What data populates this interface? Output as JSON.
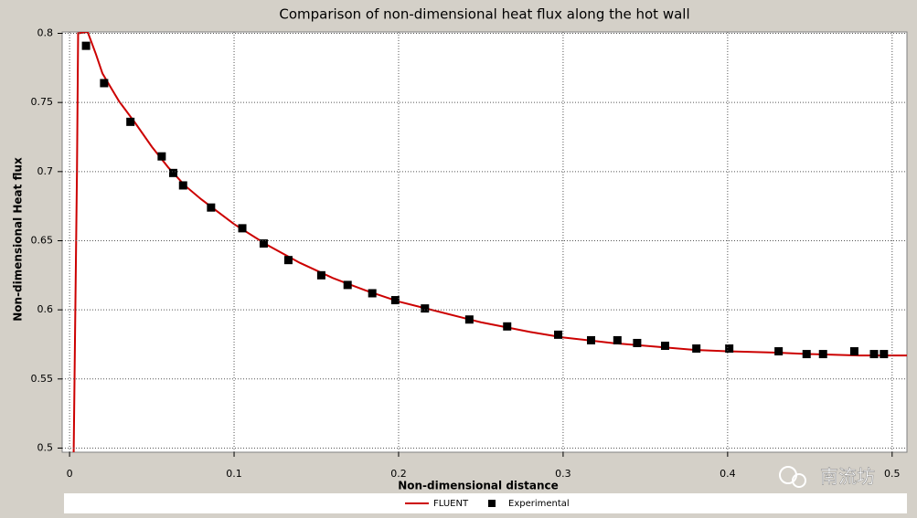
{
  "chart_data": {
    "type": "line",
    "title": "Comparison of non-dimensional heat flux along the hot wall",
    "x_label": "Non-dimensional distance",
    "y_label": "Non-dimensional Heat flux",
    "xlim": [
      -0.0045,
      0.509
    ],
    "ylim": [
      0.497,
      0.801
    ],
    "xticks": [
      0,
      0.1,
      0.2,
      0.3,
      0.4,
      0.5
    ],
    "yticks": [
      0.5,
      0.55,
      0.6,
      0.65,
      0.7,
      0.75,
      0.8
    ],
    "grid": true,
    "legend": "bottom",
    "watermark": "南流坊",
    "series": [
      {
        "name": "FLUENT",
        "type": "line",
        "color": "#cc0000",
        "x": [
          0.0025,
          0.0035,
          0.0045,
          0.0052,
          0.011,
          0.016,
          0.02,
          0.03,
          0.04,
          0.05,
          0.06,
          0.07,
          0.08,
          0.09,
          0.1,
          0.12,
          0.14,
          0.16,
          0.18,
          0.2,
          0.22,
          0.25,
          0.28,
          0.3,
          0.33,
          0.35,
          0.38,
          0.4,
          0.43,
          0.45,
          0.48,
          0.509
        ],
        "values": [
          0.497,
          0.6,
          0.7,
          0.8,
          0.801,
          0.785,
          0.771,
          0.751,
          0.735,
          0.718,
          0.703,
          0.69,
          0.68,
          0.671,
          0.662,
          0.647,
          0.634,
          0.623,
          0.614,
          0.606,
          0.6,
          0.591,
          0.584,
          0.58,
          0.576,
          0.574,
          0.571,
          0.57,
          0.569,
          0.568,
          0.567,
          0.567
        ]
      },
      {
        "name": "Experimental",
        "type": "scatter",
        "color": "#000000",
        "x": [
          0.01,
          0.021,
          0.037,
          0.056,
          0.063,
          0.069,
          0.086,
          0.105,
          0.118,
          0.133,
          0.153,
          0.169,
          0.184,
          0.198,
          0.216,
          0.243,
          0.266,
          0.297,
          0.317,
          0.333,
          0.345,
          0.362,
          0.381,
          0.401,
          0.431,
          0.448,
          0.458,
          0.477,
          0.489,
          0.495
        ],
        "values": [
          0.791,
          0.764,
          0.736,
          0.711,
          0.699,
          0.69,
          0.674,
          0.659,
          0.648,
          0.636,
          0.625,
          0.618,
          0.612,
          0.607,
          0.601,
          0.593,
          0.588,
          0.582,
          0.578,
          0.578,
          0.576,
          0.574,
          0.572,
          0.572,
          0.57,
          0.568,
          0.568,
          0.57,
          0.568,
          0.568
        ]
      }
    ]
  }
}
